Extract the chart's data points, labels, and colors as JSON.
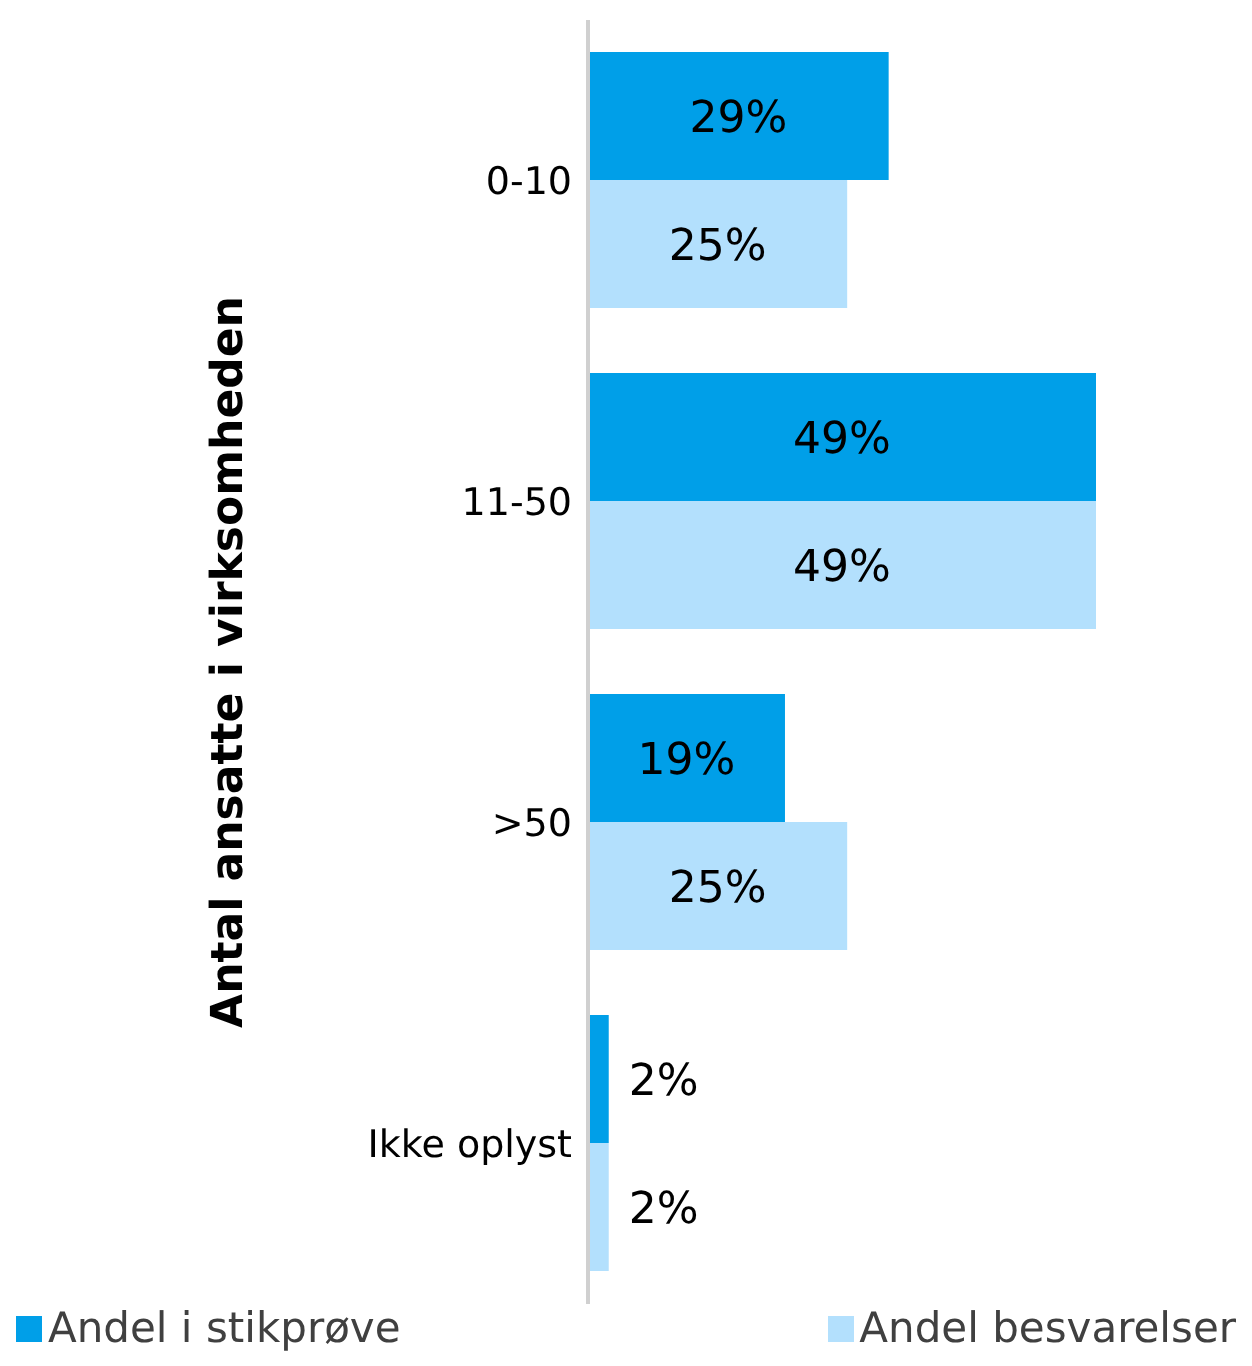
{
  "chart_data": {
    "type": "bar",
    "orientation": "horizontal",
    "ylabel": "Antal ansatte i virksomheden",
    "categories": [
      "0-10",
      "11-50",
      ">50",
      "Ikke oplyst"
    ],
    "series": [
      {
        "name": "Andel i stikprøve",
        "color": "#009fe8",
        "values": [
          29,
          49,
          19,
          2
        ],
        "value_labels": [
          "29%",
          "49%",
          "19%",
          "2%"
        ]
      },
      {
        "name": "Andel besvarelser",
        "color": "#b3e0fd",
        "values": [
          25,
          49,
          25,
          2
        ],
        "value_labels": [
          "25%",
          "49%",
          "25%",
          "2%"
        ]
      }
    ],
    "legend": "bottom"
  }
}
